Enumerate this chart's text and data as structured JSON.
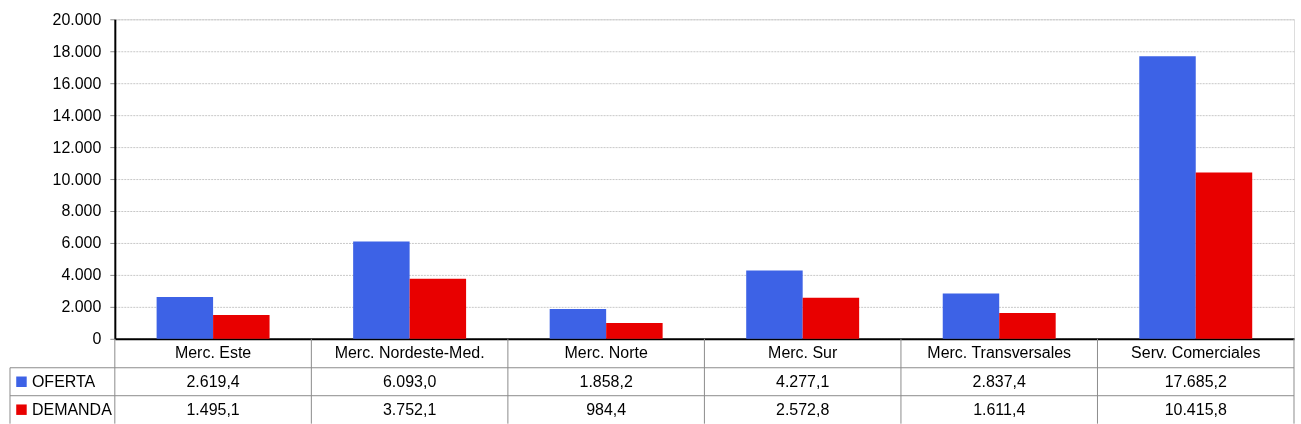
{
  "chart_data": {
    "type": "bar",
    "categories": [
      "Merc. Este",
      "Merc. Nordeste-Med.",
      "Merc. Norte",
      "Merc. Sur",
      "Merc. Transversales",
      "Serv. Comerciales"
    ],
    "series": [
      {
        "name": "OFERTA",
        "color": "#3d62e6",
        "values": [
          2619.4,
          6093.0,
          1858.2,
          4277.1,
          2837.4,
          17685.2
        ],
        "value_labels": [
          "2.619,4",
          "6.093,0",
          "1.858,2",
          "4.277,1",
          "2.837,4",
          "17.685,2"
        ]
      },
      {
        "name": "DEMANDA",
        "color": "#e80000",
        "values": [
          1495.1,
          3752.1,
          984.4,
          2572.8,
          1611.4,
          10415.8
        ],
        "value_labels": [
          "1.495,1",
          "3.752,1",
          "984,4",
          "2.572,8",
          "1.611,4",
          "10.415,8"
        ]
      }
    ],
    "ylim": [
      0,
      20000
    ],
    "yticks": [
      0,
      {
        "value": 2000,
        "label": "2.000"
      },
      {
        "value": 4000,
        "label": "4.000"
      },
      {
        "value": 6000,
        "label": "6.000"
      },
      {
        "value": 8000,
        "label": "8.000"
      },
      {
        "value": 10000,
        "label": "10.000"
      },
      {
        "value": 12000,
        "label": "12.000"
      },
      {
        "value": 14000,
        "label": "14.000"
      },
      {
        "value": 16000,
        "label": "16.000"
      },
      {
        "value": 18000,
        "label": "18.000"
      },
      {
        "value": 20000,
        "label": "20.000"
      }
    ],
    "grid": "y",
    "legend": "bottom"
  }
}
